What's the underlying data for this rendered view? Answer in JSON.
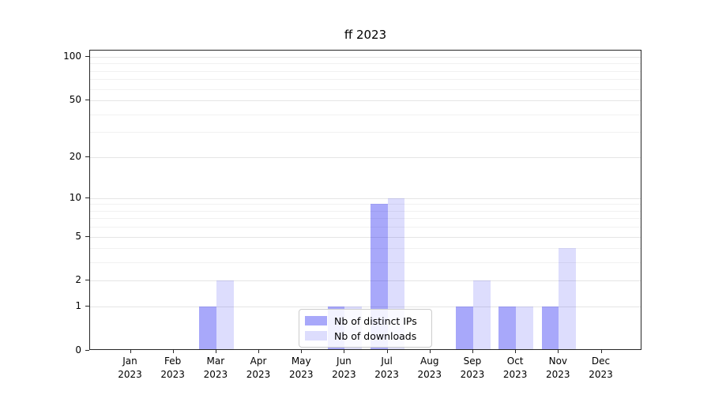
{
  "chart_data": {
    "type": "bar",
    "title": "ff 2023",
    "categories": [
      "Jan",
      "Feb",
      "Mar",
      "Apr",
      "May",
      "Jun",
      "Jul",
      "Aug",
      "Sep",
      "Oct",
      "Nov",
      "Dec"
    ],
    "year": "2023",
    "x_tick_labels": [
      "Jan 2023",
      "Feb 2023",
      "Mar 2023",
      "Apr 2023",
      "May 2023",
      "Jun 2023",
      "Jul 2023",
      "Aug 2023",
      "Sep 2023",
      "Oct 2023",
      "Nov 2023",
      "Dec 2023"
    ],
    "series": [
      {
        "name": "Nb of distinct IPs",
        "color": "rgba(13,13,242,0.36)",
        "color_hex": "#a7a7f8",
        "values": [
          0,
          0,
          1,
          0,
          0,
          1,
          9,
          0,
          1,
          1,
          1,
          0
        ]
      },
      {
        "name": "Nb of downloads",
        "color": "rgba(13,13,242,0.14)",
        "color_hex": "#dbdbf8",
        "values": [
          0,
          0,
          2,
          0,
          0,
          1,
          10,
          0,
          2,
          1,
          4,
          0
        ]
      }
    ],
    "yscale": "log1p",
    "ylim": [
      0,
      110.5
    ],
    "y_ticks": [
      0,
      1,
      2,
      5,
      10,
      20,
      50,
      100
    ],
    "y_minor_gridlines": [
      3,
      4,
      6,
      7,
      8,
      9,
      30,
      40,
      60,
      70,
      80,
      90
    ],
    "grid": true,
    "legend_position": "lower center"
  },
  "colors": {
    "grid_major": "#e5e5e5",
    "grid_minor": "#f1f1f1",
    "axis": "#262626",
    "text": "#000000",
    "background": "#ffffff"
  }
}
